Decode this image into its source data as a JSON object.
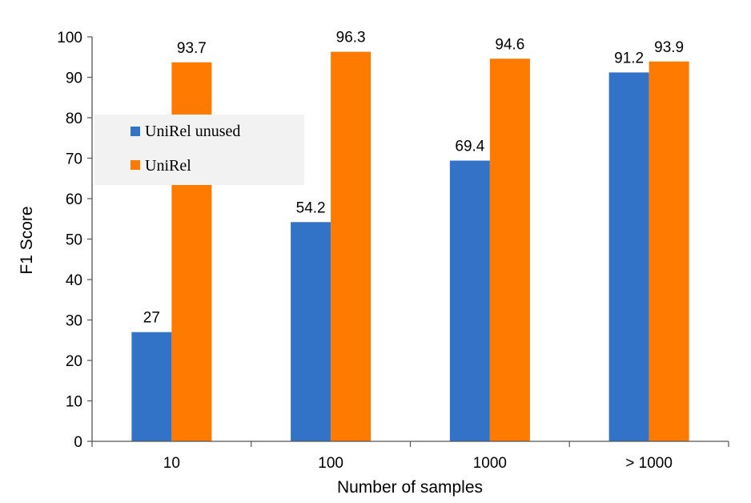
{
  "chart_data": {
    "type": "bar",
    "categories": [
      "10",
      "100",
      "1000",
      "> 1000"
    ],
    "series": [
      {
        "name": "UniRel unused",
        "values": [
          27,
          54.2,
          69.4,
          91.2
        ],
        "labels": [
          "27",
          "54.2",
          "69.4",
          "91.2"
        ],
        "color": "#3273c8"
      },
      {
        "name": "UniRel",
        "values": [
          93.7,
          96.3,
          94.6,
          93.9
        ],
        "labels": [
          "93.7",
          "96.3",
          "94.6",
          "93.9"
        ],
        "color": "#ff7a00"
      }
    ],
    "xlabel": "Number of samples",
    "ylabel": "F1 Score",
    "ylim": [
      0,
      100
    ],
    "yticks": [
      0,
      10,
      20,
      30,
      40,
      50,
      60,
      70,
      80,
      90,
      100
    ],
    "ytick_labels": [
      "0",
      "10",
      "20",
      "30",
      "40",
      "50",
      "60",
      "70",
      "80",
      "90",
      "100"
    ],
    "legend_position": "upper-left",
    "legend_background": "#f2f2f2",
    "grid": false
  }
}
